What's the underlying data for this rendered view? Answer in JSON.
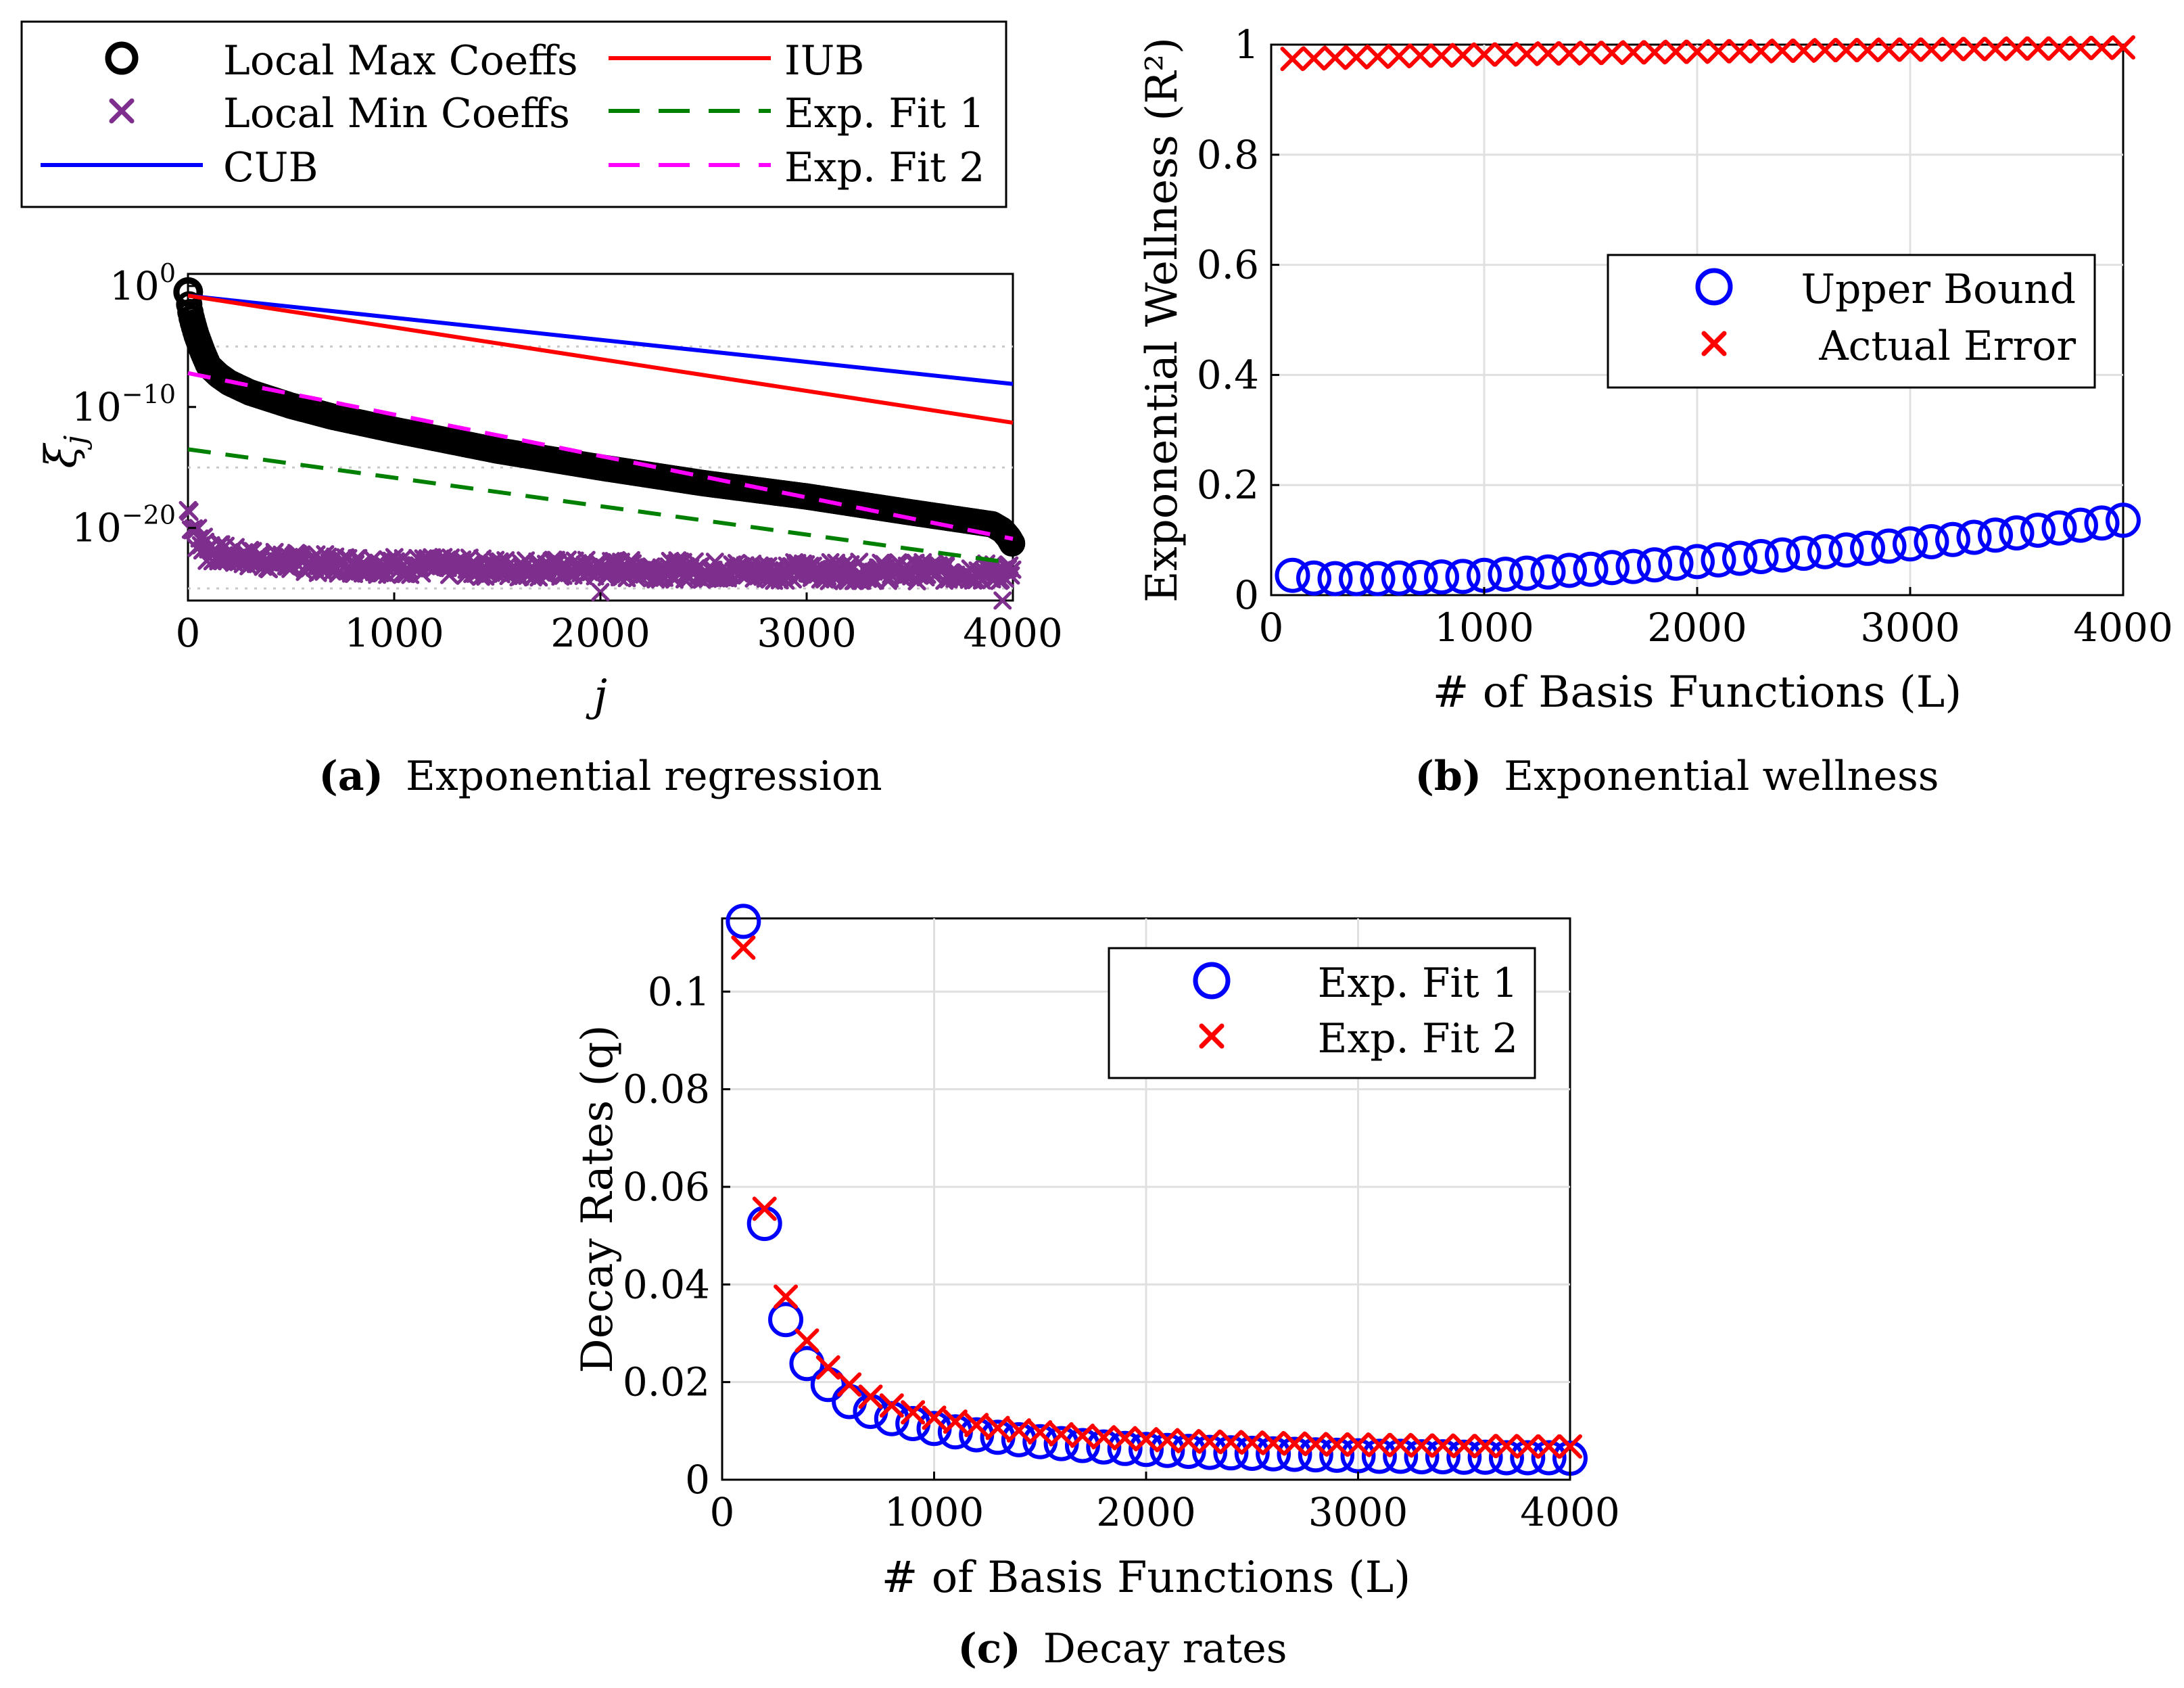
{
  "figure": {
    "panels": [
      "a",
      "b",
      "c"
    ]
  },
  "chart_data": [
    {
      "id": "a",
      "type": "scatter",
      "caption_label": "(a)",
      "caption_text": "Exponential regression",
      "xlabel": "j",
      "ylabel": "ξ_j",
      "yscale": "log",
      "xlim": [
        0,
        4000
      ],
      "ylim_exp": [
        -26,
        1
      ],
      "xticks": [
        0,
        1000,
        2000,
        3000,
        4000
      ],
      "xtick_labels": [
        "0",
        "1000",
        "2000",
        "3000",
        "4000"
      ],
      "yticks_exp": [
        0,
        -10,
        -20
      ],
      "ytick_base": "10",
      "ytick_exponents": [
        "0",
        "−10",
        "−20"
      ],
      "gridlines_exp": [
        -5,
        -15,
        -25
      ],
      "legend": {
        "placement": "above",
        "entries": [
          "Local Max Coeffs",
          "Local Min Coeffs",
          "CUB",
          "IUB",
          "Exp. Fit 1",
          "Exp. Fit 2"
        ]
      },
      "series": [
        {
          "name": "Local Max Coeffs",
          "kind": "markers",
          "marker": "circle",
          "color": "#000000",
          "log10_points": [
            [
              1,
              -0.5
            ],
            [
              5,
              -1.4
            ],
            [
              10,
              -2.0
            ],
            [
              20,
              -2.8
            ],
            [
              40,
              -4.0
            ],
            [
              70,
              -5.4
            ],
            [
              100,
              -6.6
            ],
            [
              150,
              -7.4
            ],
            [
              200,
              -8.0
            ],
            [
              300,
              -8.8
            ],
            [
              500,
              -9.9
            ],
            [
              700,
              -10.8
            ],
            [
              1000,
              -11.9
            ],
            [
              1500,
              -13.6
            ],
            [
              2000,
              -15.0
            ],
            [
              2500,
              -16.3
            ],
            [
              3000,
              -17.4
            ],
            [
              3500,
              -18.7
            ],
            [
              3900,
              -19.7
            ],
            [
              3950,
              -20.2
            ],
            [
              3980,
              -20.8
            ],
            [
              4000,
              -21.4
            ]
          ]
        },
        {
          "name": "Local Min Coeffs",
          "kind": "markers",
          "marker": "x",
          "color": "#7e2f8e",
          "log10_points": [
            [
              1,
              -18.5
            ],
            [
              20,
              -19.5
            ],
            [
              50,
              -21.0
            ],
            [
              100,
              -21.8
            ],
            [
              200,
              -22.3
            ],
            [
              400,
              -22.7
            ],
            [
              700,
              -23.0
            ],
            [
              1000,
              -23.1
            ],
            [
              1500,
              -23.3
            ],
            [
              2000,
              -23.4
            ],
            [
              2500,
              -23.5
            ],
            [
              3000,
              -23.6
            ],
            [
              3500,
              -23.6
            ],
            [
              4000,
              -23.7
            ]
          ]
        },
        {
          "name": "CUB",
          "kind": "line",
          "color": "#0000ff",
          "dash": "solid",
          "log10_endpoints": [
            [
              0,
              -0.8
            ],
            [
              4000,
              -8.1
            ]
          ]
        },
        {
          "name": "IUB",
          "kind": "line",
          "color": "#ff0000",
          "dash": "solid",
          "log10_endpoints": [
            [
              0,
              -0.8
            ],
            [
              4000,
              -11.3
            ]
          ]
        },
        {
          "name": "Exp. Fit 1",
          "kind": "line",
          "color": "#008000",
          "dash": "dashed",
          "log10_endpoints": [
            [
              0,
              -13.5
            ],
            [
              4000,
              -22.9
            ]
          ]
        },
        {
          "name": "Exp. Fit 2",
          "kind": "line",
          "color": "#ff00ff",
          "dash": "dashed",
          "log10_endpoints": [
            [
              0,
              -7.2
            ],
            [
              4000,
              -20.9
            ]
          ]
        }
      ]
    },
    {
      "id": "b",
      "type": "scatter",
      "caption_label": "(b)",
      "caption_text": "Exponential wellness",
      "xlabel": "# of Basis Functions (L)",
      "ylabel": "Exponential Wellness (R²)",
      "xlim": [
        0,
        4000
      ],
      "ylim": [
        0,
        1
      ],
      "xticks": [
        0,
        1000,
        2000,
        3000,
        4000
      ],
      "xtick_labels": [
        "0",
        "1000",
        "2000",
        "3000",
        "4000"
      ],
      "yticks": [
        0,
        0.2,
        0.4,
        0.6,
        0.8,
        1
      ],
      "ytick_labels": [
        "0",
        "0.2",
        "0.4",
        "0.6",
        "0.8",
        "1"
      ],
      "grid": true,
      "legend": {
        "placement": "center-right",
        "entries": [
          "Upper Bound",
          "Actual Error"
        ]
      },
      "x": [
        100,
        200,
        300,
        400,
        500,
        600,
        700,
        800,
        900,
        1000,
        1100,
        1200,
        1300,
        1400,
        1500,
        1600,
        1700,
        1800,
        1900,
        2000,
        2100,
        2200,
        2300,
        2400,
        2500,
        2600,
        2700,
        2800,
        2900,
        3000,
        3100,
        3200,
        3300,
        3400,
        3500,
        3600,
        3700,
        3800,
        3900,
        4000
      ],
      "series": [
        {
          "name": "Upper Bound",
          "marker": "circle",
          "color": "#0000ff",
          "values": [
            0.036,
            0.031,
            0.03,
            0.03,
            0.03,
            0.031,
            0.032,
            0.033,
            0.034,
            0.036,
            0.038,
            0.04,
            0.042,
            0.045,
            0.047,
            0.05,
            0.052,
            0.055,
            0.058,
            0.061,
            0.064,
            0.067,
            0.07,
            0.073,
            0.076,
            0.079,
            0.082,
            0.085,
            0.089,
            0.093,
            0.097,
            0.101,
            0.105,
            0.109,
            0.113,
            0.118,
            0.122,
            0.127,
            0.131,
            0.136
          ]
        },
        {
          "name": "Actual Error",
          "marker": "x",
          "color": "#ff0000",
          "values": [
            0.974,
            0.975,
            0.976,
            0.977,
            0.978,
            0.979,
            0.98,
            0.98,
            0.981,
            0.982,
            0.982,
            0.983,
            0.984,
            0.984,
            0.985,
            0.985,
            0.986,
            0.986,
            0.987,
            0.987,
            0.988,
            0.988,
            0.988,
            0.989,
            0.989,
            0.99,
            0.99,
            0.99,
            0.991,
            0.991,
            0.991,
            0.992,
            0.992,
            0.992,
            0.993,
            0.993,
            0.993,
            0.994,
            0.994,
            0.995
          ]
        }
      ]
    },
    {
      "id": "c",
      "type": "scatter",
      "caption_label": "(c)",
      "caption_text": "Decay rates",
      "xlabel": "# of Basis Functions (L)",
      "ylabel": "Decay Rates (q)",
      "xlim": [
        0,
        4000
      ],
      "ylim": [
        0,
        0.115
      ],
      "xticks": [
        0,
        1000,
        2000,
        3000,
        4000
      ],
      "xtick_labels": [
        "0",
        "1000",
        "2000",
        "3000",
        "4000"
      ],
      "yticks": [
        0,
        0.02,
        0.04,
        0.06,
        0.08,
        0.1
      ],
      "ytick_labels": [
        "0",
        "0.02",
        "0.04",
        "0.06",
        "0.08",
        "0.1"
      ],
      "grid": true,
      "legend": {
        "placement": "top-right",
        "entries": [
          "Exp. Fit 1",
          "Exp. Fit 2"
        ]
      },
      "x": [
        100,
        200,
        300,
        400,
        500,
        600,
        700,
        800,
        900,
        1000,
        1100,
        1200,
        1300,
        1400,
        1500,
        1600,
        1700,
        1800,
        1900,
        2000,
        2100,
        2200,
        2300,
        2400,
        2500,
        2600,
        2700,
        2800,
        2900,
        3000,
        3100,
        3200,
        3300,
        3400,
        3500,
        3600,
        3700,
        3800,
        3900,
        4000
      ],
      "series": [
        {
          "name": "Exp. Fit 1",
          "marker": "circle",
          "color": "#0000ff",
          "values": [
            0.1144,
            0.0525,
            0.0328,
            0.0238,
            0.0195,
            0.016,
            0.014,
            0.0125,
            0.0115,
            0.0105,
            0.0098,
            0.0092,
            0.0087,
            0.0082,
            0.0078,
            0.0074,
            0.007,
            0.0067,
            0.0064,
            0.0062,
            0.006,
            0.0058,
            0.0056,
            0.0055,
            0.0054,
            0.0053,
            0.0052,
            0.0051,
            0.005,
            0.0049,
            0.0048,
            0.0048,
            0.0047,
            0.0047,
            0.0046,
            0.0046,
            0.0045,
            0.0045,
            0.0045,
            0.0044
          ]
        },
        {
          "name": "Exp. Fit 2",
          "marker": "x",
          "color": "#ff0000",
          "values": [
            0.109,
            0.0555,
            0.0375,
            0.0285,
            0.023,
            0.0195,
            0.017,
            0.0152,
            0.0138,
            0.0127,
            0.0119,
            0.0112,
            0.0106,
            0.0101,
            0.0097,
            0.0093,
            0.009,
            0.0087,
            0.0085,
            0.0083,
            0.0081,
            0.0079,
            0.0078,
            0.0077,
            0.0076,
            0.0075,
            0.0074,
            0.0073,
            0.0072,
            0.0072,
            0.0071,
            0.0071,
            0.007,
            0.007,
            0.0069,
            0.0069,
            0.0069,
            0.0068,
            0.0068,
            0.0068
          ]
        }
      ]
    }
  ]
}
